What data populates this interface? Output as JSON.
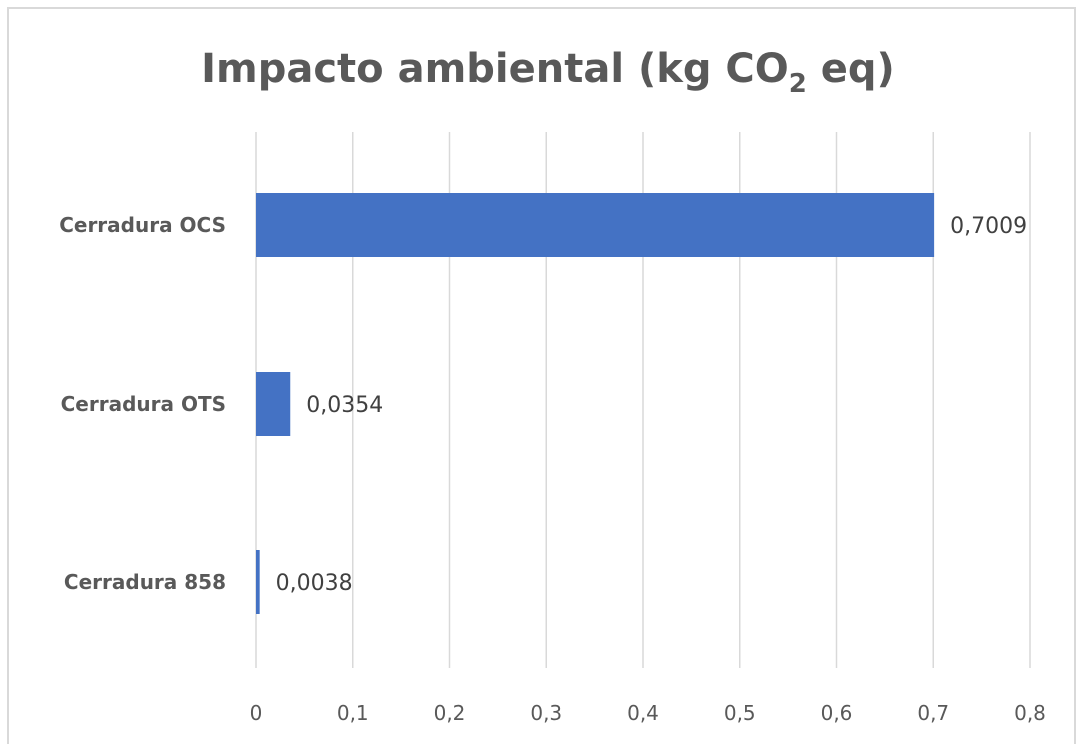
{
  "chart_data": {
    "type": "bar",
    "orientation": "horizontal",
    "title": {
      "main": "Impacto ambiental (kg CO",
      "subscript": "2",
      "tail": " eq)"
    },
    "categories": [
      "Cerradura OCS",
      "Cerradura OTS",
      "Cerradura 858"
    ],
    "values": [
      0.7009,
      0.0354,
      0.0038
    ],
    "data_labels": [
      "0,7009",
      "0,0354",
      "0,0038"
    ],
    "xlim": [
      0,
      0.8
    ],
    "ticks": [
      0,
      0.1,
      0.2,
      0.3,
      0.4,
      0.5,
      0.6,
      0.7,
      0.8
    ],
    "tick_labels": [
      "0",
      "0,1",
      "0,2",
      "0,3",
      "0,4",
      "0,5",
      "0,6",
      "0,7",
      "0,8"
    ],
    "grid": "vertical",
    "legend": "none",
    "colors": {
      "bar": "#4472C4",
      "grid": "#D9D9D9",
      "text": "#595959",
      "border": "#D9D9D9"
    }
  }
}
